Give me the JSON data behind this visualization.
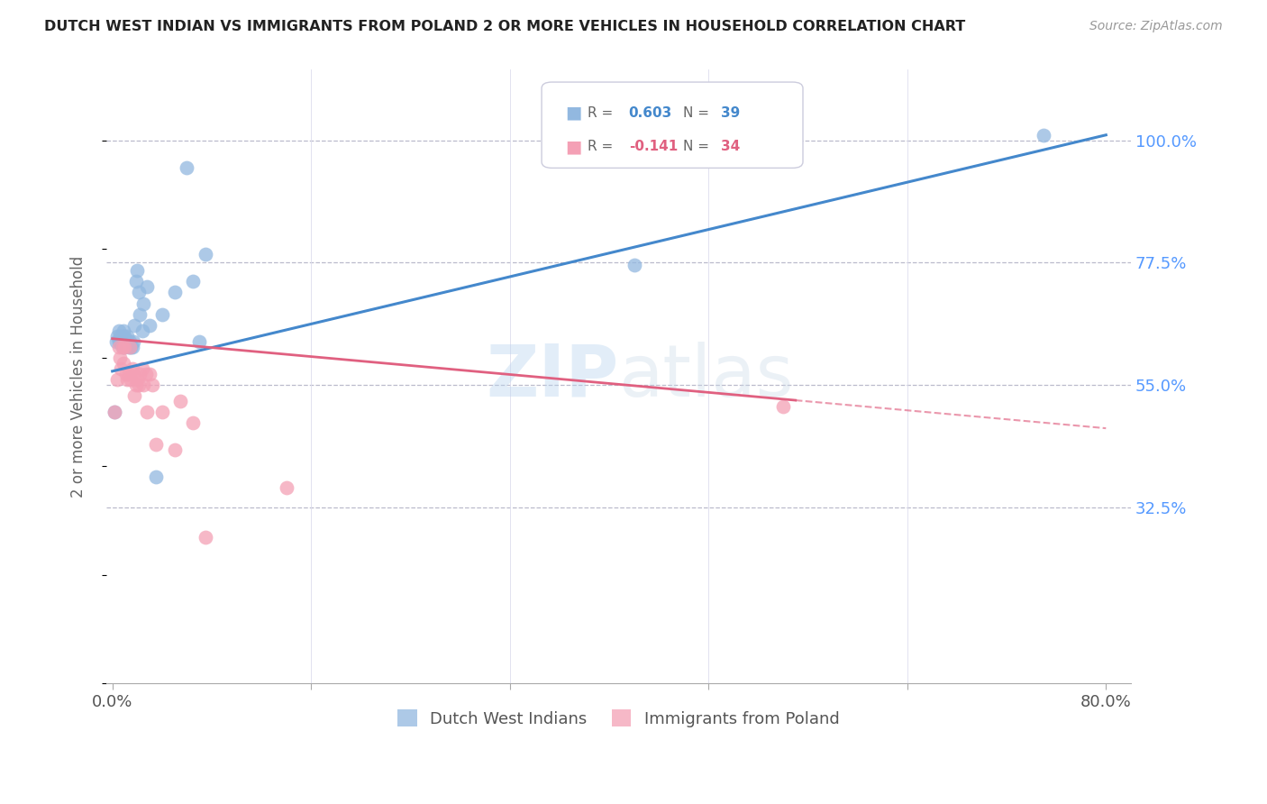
{
  "title": "DUTCH WEST INDIAN VS IMMIGRANTS FROM POLAND 2 OR MORE VEHICLES IN HOUSEHOLD CORRELATION CHART",
  "source": "Source: ZipAtlas.com",
  "ylabel": "2 or more Vehicles in Household",
  "ytick_vals": [
    0.325,
    0.55,
    0.775,
    1.0
  ],
  "ytick_labels": [
    "32.5%",
    "55.0%",
    "77.5%",
    "100.0%"
  ],
  "xtick_vals": [
    0.0,
    0.16,
    0.32,
    0.48,
    0.64,
    0.8
  ],
  "xtick_labels": [
    "0.0%",
    "",
    "",
    "",
    "",
    "80.0%"
  ],
  "xlim": [
    -0.005,
    0.82
  ],
  "ylim": [
    0.0,
    1.13
  ],
  "watermark_line1": "ZIP",
  "watermark_line2": "atlas",
  "legend_r1": "0.603",
  "legend_n1": "39",
  "legend_r2": "-0.141",
  "legend_n2": "34",
  "label1": "Dutch West Indians",
  "label2": "Immigrants from Poland",
  "color1": "#92B8E0",
  "color2": "#F4A0B5",
  "line_color1": "#4488CC",
  "line_color2": "#E06080",
  "dutch_west_x": [
    0.002,
    0.003,
    0.004,
    0.005,
    0.005,
    0.006,
    0.006,
    0.007,
    0.008,
    0.008,
    0.009,
    0.009,
    0.01,
    0.01,
    0.011,
    0.012,
    0.013,
    0.014,
    0.015,
    0.016,
    0.017,
    0.018,
    0.019,
    0.02,
    0.021,
    0.022,
    0.024,
    0.025,
    0.028,
    0.03,
    0.035,
    0.04,
    0.05,
    0.06,
    0.065,
    0.07,
    0.075,
    0.42,
    0.75
  ],
  "dutch_west_y": [
    0.5,
    0.63,
    0.64,
    0.63,
    0.65,
    0.63,
    0.64,
    0.63,
    0.62,
    0.64,
    0.63,
    0.65,
    0.62,
    0.64,
    0.63,
    0.64,
    0.62,
    0.63,
    0.62,
    0.62,
    0.63,
    0.66,
    0.74,
    0.76,
    0.72,
    0.68,
    0.65,
    0.7,
    0.73,
    0.66,
    0.38,
    0.68,
    0.72,
    0.95,
    0.74,
    0.63,
    0.79,
    0.77,
    1.01
  ],
  "poland_x": [
    0.002,
    0.004,
    0.005,
    0.006,
    0.007,
    0.008,
    0.009,
    0.01,
    0.011,
    0.012,
    0.013,
    0.014,
    0.015,
    0.016,
    0.017,
    0.018,
    0.019,
    0.02,
    0.021,
    0.022,
    0.024,
    0.025,
    0.027,
    0.028,
    0.03,
    0.032,
    0.035,
    0.04,
    0.05,
    0.055,
    0.065,
    0.075,
    0.14,
    0.54
  ],
  "poland_y": [
    0.5,
    0.56,
    0.62,
    0.6,
    0.58,
    0.62,
    0.59,
    0.62,
    0.57,
    0.56,
    0.57,
    0.62,
    0.56,
    0.58,
    0.57,
    0.53,
    0.55,
    0.56,
    0.55,
    0.57,
    0.58,
    0.55,
    0.57,
    0.5,
    0.57,
    0.55,
    0.44,
    0.5,
    0.43,
    0.52,
    0.48,
    0.27,
    0.36,
    0.51
  ]
}
